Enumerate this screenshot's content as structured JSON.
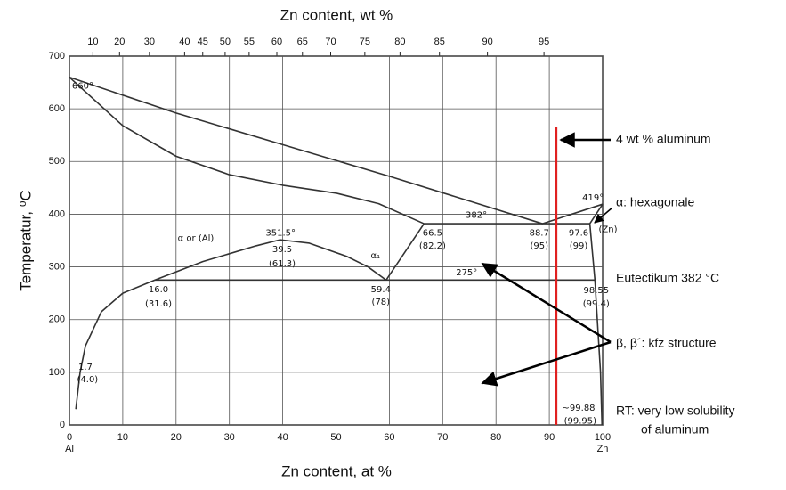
{
  "chart_data": {
    "type": "line",
    "x2label": "Zn content, wt %",
    "xlabel": "Zn content, at %",
    "ylabel": "Temperatur, ⁰C",
    "xlim": [
      0,
      100
    ],
    "xticks": [
      0,
      10,
      20,
      30,
      40,
      50,
      60,
      70,
      80,
      90,
      100
    ],
    "x2ticks": [
      {
        "value": 4.4,
        "label": "10"
      },
      {
        "value": 9.4,
        "label": "20"
      },
      {
        "value": 15.0,
        "label": "30"
      },
      {
        "value": 21.6,
        "label": "40"
      },
      {
        "value": 25.0,
        "label": "45"
      },
      {
        "value": 29.2,
        "label": "50"
      },
      {
        "value": 33.7,
        "label": "55"
      },
      {
        "value": 38.9,
        "label": "60"
      },
      {
        "value": 43.7,
        "label": "65"
      },
      {
        "value": 49.0,
        "label": "70"
      },
      {
        "value": 55.4,
        "label": "75"
      },
      {
        "value": 62.0,
        "label": "80"
      },
      {
        "value": 69.4,
        "label": "85"
      },
      {
        "value": 78.4,
        "label": "90"
      },
      {
        "value": 89.0,
        "label": "95"
      }
    ],
    "x_end_labels": [
      {
        "value": 0,
        "label": "Al"
      },
      {
        "value": 100,
        "label": "Zn"
      }
    ],
    "ylim": [
      0,
      700
    ],
    "yticks": [
      0,
      100,
      200,
      300,
      400,
      500,
      600,
      700
    ],
    "grid": true,
    "series": [
      {
        "color": "#333333",
        "x": [
          0,
          20,
          40,
          60,
          75,
          88.7,
          100
        ],
        "values": [
          660,
          592,
          532,
          472,
          425,
          382,
          419
        ]
      },
      {
        "color": "#333333",
        "x": [
          0,
          10,
          20,
          30,
          40,
          50,
          58,
          66.5
        ],
        "values": [
          660,
          568,
          510,
          475,
          455,
          440,
          420,
          382
        ]
      },
      {
        "color": "#333333",
        "x": [
          66.5,
          97.6
        ],
        "values": [
          382,
          382
        ]
      },
      {
        "color": "#333333",
        "x": [
          16,
          98.55
        ],
        "values": [
          275,
          275
        ]
      },
      {
        "color": "#333333",
        "x": [
          1.2,
          2,
          3,
          6,
          10,
          16,
          25,
          35,
          39.5,
          45,
          52,
          56,
          59.4
        ],
        "values": [
          30,
          100,
          150,
          215,
          250,
          275,
          310,
          340,
          351.5,
          345,
          320,
          300,
          275
        ]
      },
      {
        "color": "#333333",
        "x": [
          59.4,
          66.5
        ],
        "values": [
          275,
          382
        ]
      },
      {
        "color": "#333333",
        "x": [
          100,
          97.6,
          98.55,
          99.6,
          99.88
        ],
        "values": [
          419,
          382,
          275,
          100,
          0
        ]
      }
    ],
    "vlines": [
      {
        "value": 91.3,
        "color": "#e02020"
      }
    ],
    "annotations": [
      {
        "text": "660°",
        "x": 2.5,
        "y": 643
      },
      {
        "text": "419°",
        "x": 98.2,
        "y": 431
      },
      {
        "text": "382°",
        "x": 76.3,
        "y": 398
      },
      {
        "text": "275°",
        "x": 74.5,
        "y": 289
      },
      {
        "text": "351.5°",
        "x": 39.6,
        "y": 364
      },
      {
        "text": "39.5",
        "x": 39.9,
        "y": 333
      },
      {
        "text": "(61.3)",
        "x": 39.9,
        "y": 306
      },
      {
        "text": "α or (Al)",
        "x": 23.7,
        "y": 354
      },
      {
        "text": "α₁",
        "x": 57.4,
        "y": 321
      },
      {
        "text": "16.0",
        "x": 16.7,
        "y": 257
      },
      {
        "text": "(31.6)",
        "x": 16.7,
        "y": 230
      },
      {
        "text": "59.4",
        "x": 58.4,
        "y": 257
      },
      {
        "text": "(78)",
        "x": 58.4,
        "y": 233
      },
      {
        "text": "66.5",
        "x": 68.1,
        "y": 364
      },
      {
        "text": "(82.2)",
        "x": 68.1,
        "y": 340
      },
      {
        "text": "88.7",
        "x": 88.1,
        "y": 364
      },
      {
        "text": "(95)",
        "x": 88.1,
        "y": 340
      },
      {
        "text": "97.6",
        "x": 95.5,
        "y": 364
      },
      {
        "text": "(99)",
        "x": 95.5,
        "y": 340
      },
      {
        "text": "(Zn)",
        "x": 101,
        "y": 371
      },
      {
        "text": "98.55",
        "x": 98.8,
        "y": 255
      },
      {
        "text": "(99.4)",
        "x": 98.8,
        "y": 230
      },
      {
        "text": "1.7",
        "x": 3,
        "y": 110
      },
      {
        "text": "(4.0)",
        "x": 3.4,
        "y": 86
      },
      {
        "text": "~99.88",
        "x": 95.5,
        "y": 32
      },
      {
        "text": "(99.95)",
        "x": 95.8,
        "y": 8
      }
    ],
    "notes": [
      "4 wt % aluminum",
      "α: hexagonale",
      "Eutectikum 382 °C",
      "β, β´: kfz structure",
      "RT: very low solubility",
      "of aluminum"
    ]
  }
}
